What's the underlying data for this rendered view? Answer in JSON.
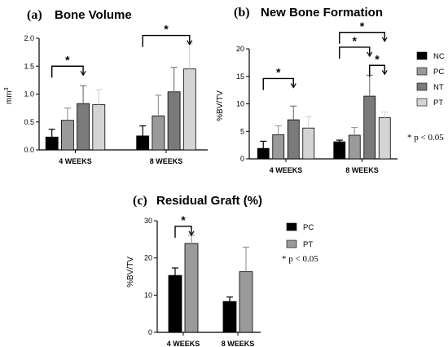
{
  "chart_data": [
    {
      "type": "bar",
      "letter": "(a)",
      "title": "Bone Volume",
      "ylabel": "mm",
      "ylabel_sup": "3",
      "ylim": [
        0,
        2.0
      ],
      "yticks": [
        "0.0",
        "0.5",
        "1.0",
        "1.5",
        "2.0"
      ],
      "yticks_values": [
        0,
        0.5,
        1.0,
        1.5,
        2.0
      ],
      "categories": [
        "4 WEEKS",
        "8 WEEKS"
      ],
      "series": [
        {
          "name": "NC",
          "color": "#000000",
          "values": [
            0.23,
            0.25
          ],
          "errors": [
            0.14,
            0.18
          ]
        },
        {
          "name": "PC",
          "color": "#9a9a9a",
          "values": [
            0.53,
            0.61
          ],
          "errors": [
            0.22,
            0.37
          ]
        },
        {
          "name": "NT",
          "color": "#7a7a7a",
          "values": [
            0.83,
            1.04
          ],
          "errors": [
            0.32,
            0.44
          ]
        },
        {
          "name": "PT",
          "color": "#d4d4d4",
          "values": [
            0.81,
            1.45
          ],
          "errors": [
            0.27,
            0.45
          ]
        }
      ],
      "significance": [
        {
          "label": "*",
          "category": 0,
          "from": 0,
          "to": 2,
          "y": 1.5
        },
        {
          "label": "*",
          "category": 1,
          "from": 0,
          "to": 3,
          "y": 2.05
        }
      ]
    },
    {
      "type": "bar",
      "letter": "(b)",
      "title": "New Bone Formation",
      "ylabel": "%BV/TV",
      "ylim": [
        0,
        20
      ],
      "yticks": [
        "0",
        "5",
        "10",
        "15",
        "20"
      ],
      "yticks_values": [
        0,
        5,
        10,
        15,
        20
      ],
      "categories": [
        "4 WEEKS",
        "8 WEEKS"
      ],
      "series": [
        {
          "name": "NC",
          "color": "#000000",
          "values": [
            1.9,
            3.1
          ],
          "errors": [
            1.3,
            0.3
          ]
        },
        {
          "name": "PC",
          "color": "#9a9a9a",
          "values": [
            4.4,
            4.3
          ],
          "errors": [
            1.6,
            1.4
          ]
        },
        {
          "name": "NT",
          "color": "#7a7a7a",
          "values": [
            7.1,
            11.4
          ],
          "errors": [
            2.5,
            3.8
          ]
        },
        {
          "name": "PT",
          "color": "#d4d4d4",
          "values": [
            5.6,
            7.5
          ],
          "errors": [
            2.1,
            1.0
          ]
        }
      ],
      "legend": [
        "NC",
        "PC",
        "NT",
        "PT"
      ],
      "pnote": "* p < 0.05",
      "significance": [
        {
          "label": "*",
          "category": 0,
          "from": 0,
          "to": 2,
          "y": 14.6
        },
        {
          "label": "*",
          "category": 1,
          "from": 0,
          "to": 3,
          "y": 23.0
        },
        {
          "label": "*",
          "category": 1,
          "from": 0,
          "to": 2,
          "y": 20.3
        },
        {
          "label": "*",
          "category": 1,
          "from": 2,
          "to": 3,
          "y": 17.0
        }
      ]
    },
    {
      "type": "bar",
      "letter": "(c)",
      "title": "Residual Graft (%)",
      "ylabel": "%BV/TV",
      "ylim": [
        0,
        30
      ],
      "yticks": [
        "0",
        "10",
        "20",
        "30"
      ],
      "yticks_values": [
        0,
        10,
        20,
        30
      ],
      "categories": [
        "4 WEEKS",
        "8 WEEKS"
      ],
      "series": [
        {
          "name": "PC",
          "color": "#000000",
          "values": [
            15.3,
            8.3
          ],
          "errors": [
            2.0,
            1.2
          ]
        },
        {
          "name": "PT",
          "color": "#9a9a9a",
          "values": [
            23.9,
            16.3
          ],
          "errors": [
            2.2,
            6.6
          ]
        }
      ],
      "legend": [
        "PC",
        "PT"
      ],
      "pnote": "* p < 0.05",
      "significance": [
        {
          "label": "*",
          "category": 0,
          "from": 0,
          "to": 1,
          "y": 28.5
        }
      ]
    }
  ]
}
